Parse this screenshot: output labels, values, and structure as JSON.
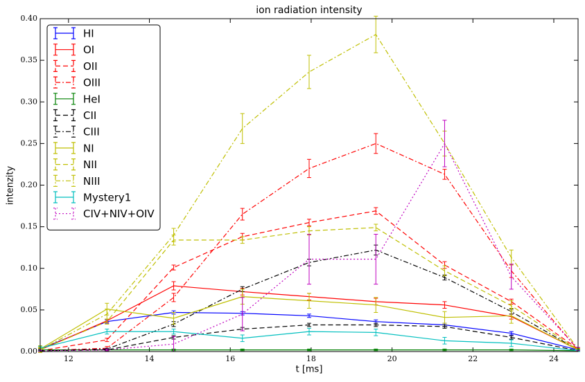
{
  "chart_data": {
    "type": "errorbar_line",
    "title": "ion radiation intensity",
    "xlabel": "t [ms]",
    "ylabel": "intenzity",
    "x": [
      11.3,
      12.95,
      14.6,
      16.3,
      17.95,
      19.6,
      21.3,
      22.95,
      24.6
    ],
    "xlim": [
      11.3,
      24.6
    ],
    "xticks": [
      12,
      14,
      16,
      18,
      20,
      22,
      24
    ],
    "ylim": [
      0,
      0.4
    ],
    "yticks": [
      {
        "value": 0,
        "label": "0.00"
      },
      0.05,
      {
        "value": 0.1,
        "label": "0.10"
      },
      0.15,
      {
        "value": 0.2,
        "label": "0.20"
      },
      0.25,
      {
        "value": 0.3,
        "label": "0.30"
      },
      0.35,
      {
        "value": 0.4,
        "label": "0.40"
      }
    ],
    "legend": "upper left",
    "series": [
      {
        "name": "HI",
        "color": "#0000ff",
        "linestyle": "solid",
        "values": [
          0.003,
          0.036,
          0.047,
          0.046,
          0.043,
          0.036,
          0.032,
          0.022,
          0.002
        ],
        "errors": [
          0.002,
          0.002,
          0.002,
          0.002,
          0.002,
          0.002,
          0.002,
          0.002,
          0.001
        ]
      },
      {
        "name": "OI",
        "color": "#ff0000",
        "linestyle": "solid",
        "values": [
          0.002,
          0.037,
          0.079,
          0.072,
          0.066,
          0.06,
          0.056,
          0.042,
          0.002
        ],
        "errors": [
          0.002,
          0.002,
          0.005,
          0.004,
          0.004,
          0.004,
          0.004,
          0.003,
          0.001
        ]
      },
      {
        "name": "OII",
        "color": "#ff0000",
        "linestyle": "dashed",
        "values": [
          0.001,
          0.014,
          0.101,
          0.138,
          0.155,
          0.169,
          0.104,
          0.06,
          0.003
        ],
        "errors": [
          0.001,
          0.002,
          0.003,
          0.004,
          0.004,
          0.004,
          0.004,
          0.003,
          0.001
        ]
      },
      {
        "name": "OIII",
        "color": "#ff0000",
        "linestyle": "dashdot",
        "values": [
          0.001,
          0.004,
          0.065,
          0.165,
          0.22,
          0.25,
          0.213,
          0.097,
          0.002
        ],
        "errors": [
          0.001,
          0.002,
          0.005,
          0.007,
          0.011,
          0.012,
          0.006,
          0.008,
          0.001
        ]
      },
      {
        "name": "HeI",
        "color": "#008000",
        "linestyle": "solid",
        "values": [
          0.002,
          0.002,
          0.002,
          0.002,
          0.002,
          0.002,
          0.002,
          0.002,
          0.001
        ],
        "errors": [
          0.001,
          0.001,
          0.001,
          0.001,
          0.001,
          0.001,
          0.001,
          0.001,
          0.001
        ]
      },
      {
        "name": "CII",
        "color": "#000000",
        "linestyle": "dashed",
        "values": [
          0.001,
          0.002,
          0.017,
          0.027,
          0.032,
          0.032,
          0.03,
          0.017,
          0.001
        ],
        "errors": [
          0.001,
          0.001,
          0.002,
          0.002,
          0.002,
          0.002,
          0.002,
          0.002,
          0.001
        ]
      },
      {
        "name": "CIII",
        "color": "#000000",
        "linestyle": "dashdot",
        "values": [
          0.001,
          0.003,
          0.033,
          0.075,
          0.107,
          0.122,
          0.089,
          0.048,
          0.002
        ],
        "errors": [
          0.001,
          0.001,
          0.003,
          0.003,
          0.004,
          0.006,
          0.003,
          0.003,
          0.001
        ]
      },
      {
        "name": "NI",
        "color": "#bfbf00",
        "linestyle": "solid",
        "values": [
          0.003,
          0.051,
          0.04,
          0.066,
          0.061,
          0.056,
          0.041,
          0.043,
          0.002
        ],
        "errors": [
          0.004,
          0.007,
          0.007,
          0.009,
          0.009,
          0.009,
          0.007,
          0.009,
          0.002
        ]
      },
      {
        "name": "NII",
        "color": "#bfbf00",
        "linestyle": "dashed",
        "values": [
          0.002,
          0.036,
          0.134,
          0.134,
          0.145,
          0.149,
          0.097,
          0.055,
          0.002
        ],
        "errors": [
          0.002,
          0.003,
          0.006,
          0.004,
          0.005,
          0.004,
          0.006,
          0.006,
          0.001
        ]
      },
      {
        "name": "NIII",
        "color": "#bfbf00",
        "linestyle": "dashdot",
        "values": [
          0.002,
          0.045,
          0.14,
          0.268,
          0.336,
          0.381,
          0.25,
          0.113,
          0.003
        ],
        "errors": [
          0.003,
          0.006,
          0.008,
          0.018,
          0.02,
          0.022,
          0.015,
          0.009,
          0.002
        ]
      },
      {
        "name": "Mystery1",
        "color": "#00bfbf",
        "linestyle": "solid",
        "values": [
          0.004,
          0.024,
          0.024,
          0.016,
          0.024,
          0.023,
          0.013,
          0.01,
          0.001
        ],
        "errors": [
          0.002,
          0.003,
          0.003,
          0.004,
          0.004,
          0.004,
          0.004,
          0.004,
          0.001
        ]
      },
      {
        "name": "CIV+NIV+OIV",
        "color": "#bf00bf",
        "linestyle": "dotted",
        "values": [
          0.001,
          0.002,
          0.009,
          0.045,
          0.111,
          0.111,
          0.25,
          0.09,
          0.003
        ],
        "errors": [
          0.001,
          0.001,
          0.009,
          0.02,
          0.03,
          0.03,
          0.028,
          0.015,
          0.002
        ]
      }
    ]
  }
}
